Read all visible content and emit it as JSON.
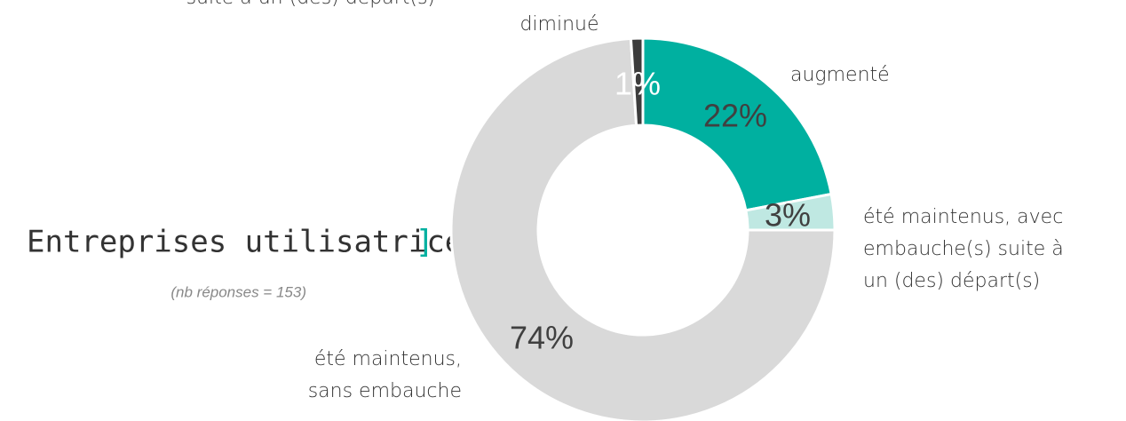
{
  "chart_data": {
    "type": "donut",
    "title": "Entreprises utilisatrices",
    "title_suffix": "]",
    "subtitle": "(nb réponses = 153)",
    "annotation": "suite à un (des) départ(s)",
    "categories": [
      "augmenté",
      "été maintenus, avec\nembauche(s) suite à\nun (des) départ(s)",
      "été maintenus,\nsans embauche",
      "diminué"
    ],
    "values": [
      22,
      3,
      74,
      1
    ],
    "value_labels": [
      "22%",
      "3%",
      "74%",
      "1%"
    ],
    "colors": [
      "#00b0a0",
      "#bfe8e2",
      "#d9d9d9",
      "#3c3c3c"
    ]
  }
}
